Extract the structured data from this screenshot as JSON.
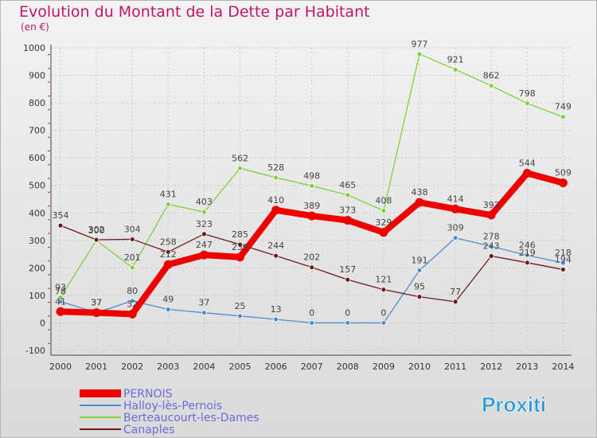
{
  "chart_data": {
    "type": "line",
    "title": "Evolution du Montant de la Dette par Habitant",
    "subtitle": "(en €)",
    "categories": [
      "2000",
      "2001",
      "2002",
      "2003",
      "2004",
      "2005",
      "2006",
      "2007",
      "2008",
      "2009",
      "2010",
      "2011",
      "2012",
      "2013",
      "2014"
    ],
    "ylim": [
      -100,
      1000
    ],
    "yticks": [
      -100,
      0,
      100,
      200,
      300,
      400,
      500,
      600,
      700,
      800,
      900,
      1000
    ],
    "grid": true,
    "series": [
      {
        "name": "PERNOIS",
        "color": "#ee0000",
        "values": [
          41,
          37,
          32,
          212,
          247,
          239,
          410,
          389,
          373,
          329,
          438,
          414,
          392,
          544,
          509
        ]
      },
      {
        "name": "Halloy-lès-Pernois",
        "color": "#4d8fcc",
        "values": [
          78,
          37,
          80,
          49,
          37,
          25,
          13,
          0,
          0,
          0,
          191,
          309,
          278,
          246,
          218
        ]
      },
      {
        "name": "Berteaucourt-les-Dames",
        "color": "#7fd03c",
        "values": [
          93,
          300,
          201,
          431,
          403,
          562,
          528,
          498,
          465,
          408,
          977,
          921,
          862,
          798,
          749
        ]
      },
      {
        "name": "Canaples",
        "color": "#6e1a1a",
        "values": [
          354,
          302,
          304,
          258,
          323,
          285,
          244,
          202,
          157,
          121,
          95,
          77,
          243,
          219,
          194
        ]
      }
    ]
  },
  "brand": {
    "text": "Proxiti"
  }
}
